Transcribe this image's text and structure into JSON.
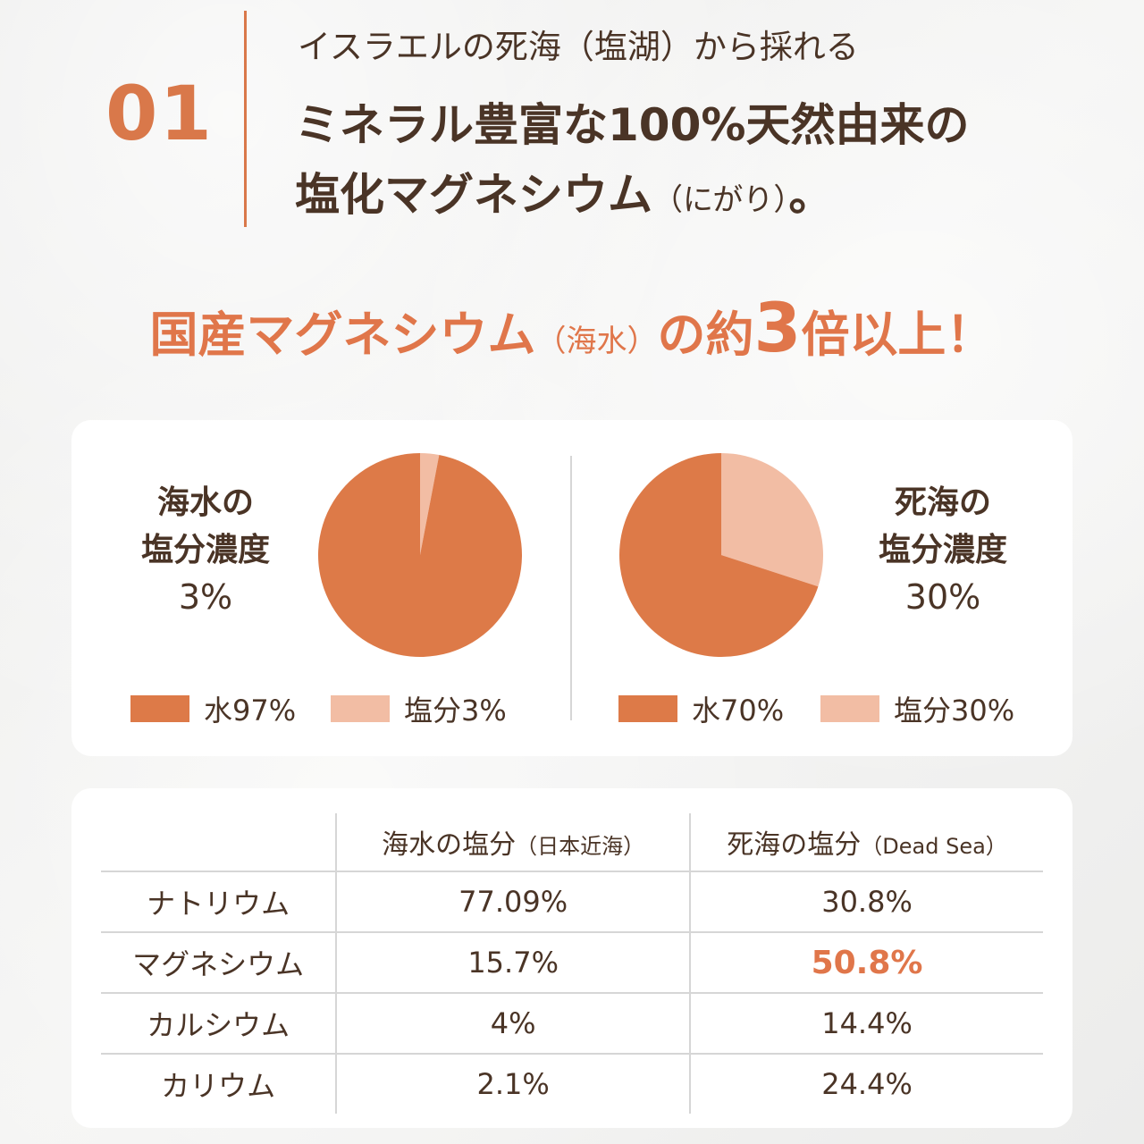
{
  "header": {
    "number": "01",
    "subtitle": "イスラエルの死海（塩湖）から採れる",
    "headline_line1": "ミネラル豊富な100%天然由来の",
    "headline_line2_main": "塩化マグネシウム",
    "headline_line2_paren": "（にがり）",
    "headline_line2_end": "。"
  },
  "tagline": {
    "part1": "国産マグネシウム",
    "paren": "（海水）",
    "part2": "の約",
    "big": "3",
    "part3": "倍以上！"
  },
  "colors": {
    "accent": "#e0764a",
    "water": "#dd7a48",
    "salt": "#f2bda4",
    "text": "#4a3426"
  },
  "chart_data": [
    {
      "type": "pie",
      "title_lines": [
        "海水の",
        "塩分濃度"
      ],
      "title_value": "3%",
      "slices": [
        {
          "label": "水97%",
          "name": "水",
          "value": 97
        },
        {
          "label": "塩分3%",
          "name": "塩分",
          "value": 3
        }
      ]
    },
    {
      "type": "pie",
      "title_lines": [
        "死海の",
        "塩分濃度"
      ],
      "title_value": "30%",
      "slices": [
        {
          "label": "水70%",
          "name": "水",
          "value": 70
        },
        {
          "label": "塩分30%",
          "name": "塩分",
          "value": 30
        }
      ]
    },
    {
      "type": "table",
      "columns": [
        {
          "main": "",
          "sub": ""
        },
        {
          "main": "海水の塩分",
          "sub": "（日本近海）"
        },
        {
          "main": "死海の塩分",
          "sub": "（Dead Sea）"
        }
      ],
      "rows": [
        [
          "ナトリウム",
          "77.09%",
          "30.8%"
        ],
        [
          "マグネシウム",
          "15.7%",
          "50.8%"
        ],
        [
          "カルシウム",
          "4%",
          "14.4%"
        ],
        [
          "カリウム",
          "2.1%",
          "24.4%"
        ]
      ],
      "highlight": {
        "row": 1,
        "col": 2
      }
    }
  ]
}
